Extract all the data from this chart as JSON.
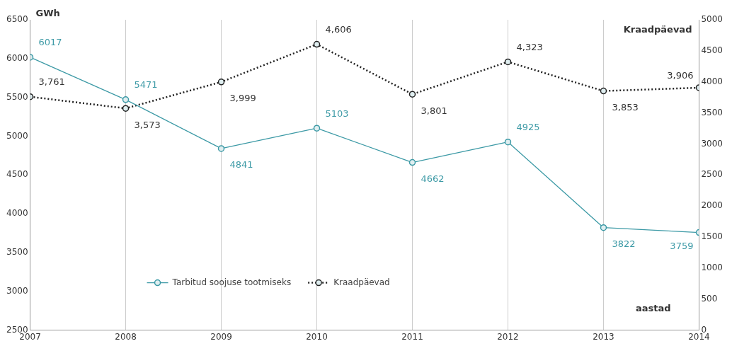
{
  "chart_data": {
    "type": "line",
    "ylabel": "GWh",
    "y2label": "Kraadpäevad",
    "xlabel": "aastad",
    "x": [
      2007,
      2008,
      2009,
      2010,
      2011,
      2012,
      2013,
      2014
    ],
    "xlim": [
      2007,
      2014
    ],
    "xticks": [
      2007,
      2008,
      2009,
      2010,
      2011,
      2012,
      2013,
      2014
    ],
    "ylim": [
      2500,
      6500
    ],
    "yticks": [
      2500,
      3000,
      3500,
      4000,
      4500,
      5000,
      5500,
      6000,
      6500
    ],
    "y2lim": [
      0,
      5000
    ],
    "y2ticks": [
      0,
      500,
      1000,
      1500,
      2000,
      2500,
      3000,
      3500,
      4000,
      4500,
      5000
    ],
    "series": [
      {
        "name": "Tarbitud soojuse tootmiseks",
        "color": "#3d9aa6",
        "line_style": "solid",
        "values": [
          6017,
          5471,
          4841,
          5103,
          4662,
          4925,
          3822,
          3759
        ],
        "value_labels": [
          "6017",
          "5471",
          "4841",
          "5103",
          "4662",
          "4925",
          "3822",
          "3759"
        ]
      },
      {
        "name": "Kraadpäevad",
        "color": "#222222",
        "axis": "y2",
        "line_style": "dotted",
        "values": [
          3761,
          3573,
          3999,
          4606,
          3801,
          4323,
          3853,
          3906
        ],
        "value_labels": [
          "3,761",
          "3,573",
          "3,999",
          "4,606",
          "3,801",
          "4,323",
          "3,853",
          "3,906"
        ]
      }
    ],
    "grid": "x",
    "legend": "bottom left",
    "marker": "circle"
  }
}
